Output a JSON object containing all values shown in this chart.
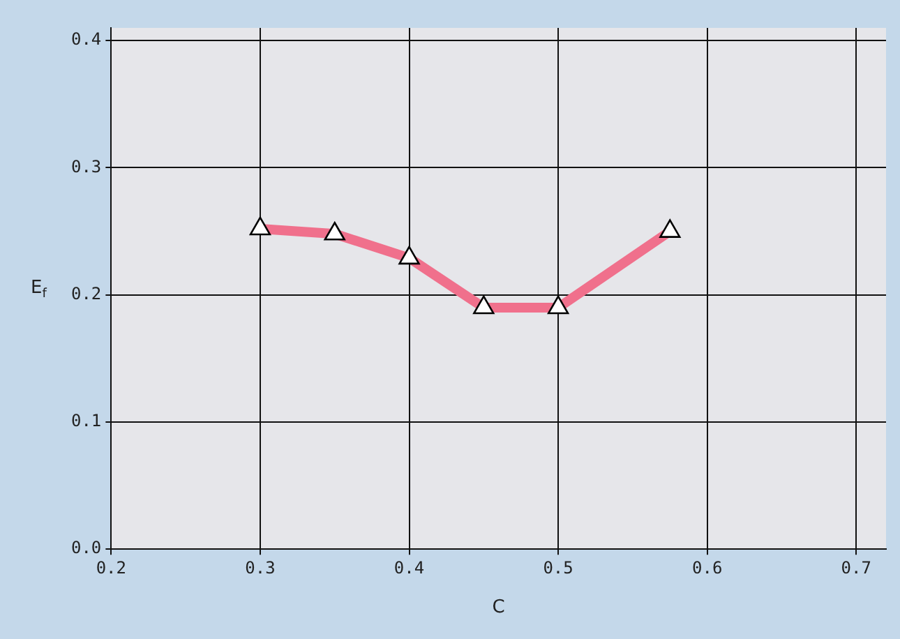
{
  "chart_data": {
    "type": "line",
    "xlabel": "C",
    "ylabel": "E$_{f}$",
    "x": [
      0.3,
      0.35,
      0.4,
      0.45,
      0.5,
      0.575
    ],
    "series": [
      {
        "color": "#f0708c",
        "values": [
          0.252,
          0.248,
          0.229,
          0.19,
          0.19,
          0.25
        ]
      }
    ],
    "xlim": [
      0.2,
      0.72
    ],
    "xticks": [
      0.2,
      0.3,
      0.4,
      0.5,
      0.6,
      0.7
    ],
    "ylim": [
      0,
      0.41
    ],
    "yticks": [
      {
        "value": 0,
        "label": "0.0"
      },
      0.1,
      0.2,
      0.3,
      0.4
    ],
    "grid": true,
    "legend": false,
    "marker": "triangle",
    "line_style": "solid"
  }
}
